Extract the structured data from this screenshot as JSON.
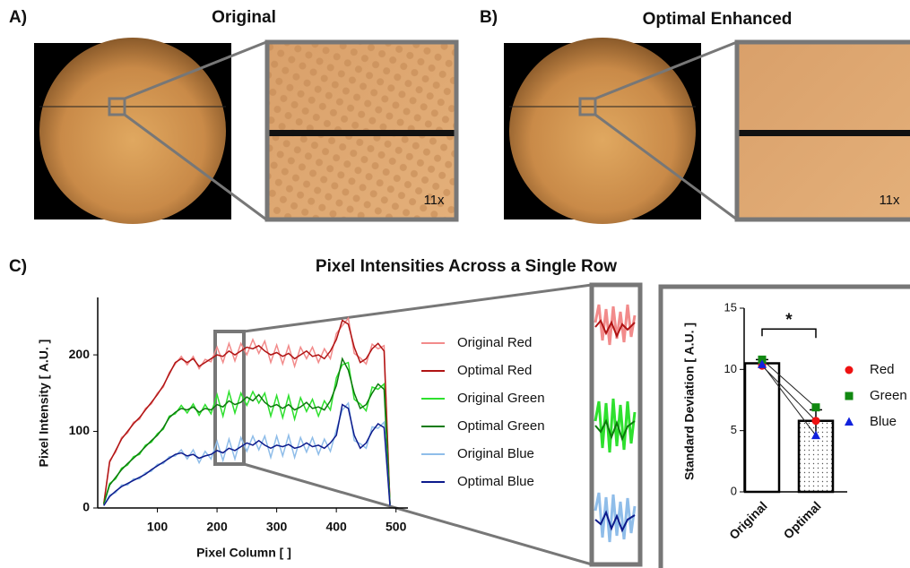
{
  "panels": {
    "a_label": "A)",
    "a_title": "Original",
    "a_zoom": "11x",
    "b_label": "B)",
    "b_title": "Optimal Enhanced",
    "b_zoom": "11x",
    "c_label": "C)"
  },
  "chart_data": [
    {
      "type": "line",
      "title": "Pixel Intensities Across a Single Row",
      "xlabel": "Pixel Column [ ]",
      "ylabel": "Pixel Intensity [ A.U. ]",
      "xlim": [
        0,
        520
      ],
      "ylim": [
        0,
        275
      ],
      "xticks": [
        100,
        200,
        300,
        400,
        500
      ],
      "yticks": [
        0,
        100,
        200
      ],
      "legend": "right",
      "x": [
        10,
        20,
        30,
        40,
        50,
        60,
        70,
        80,
        90,
        100,
        110,
        120,
        130,
        140,
        150,
        160,
        170,
        180,
        190,
        200,
        210,
        220,
        230,
        240,
        250,
        260,
        270,
        280,
        290,
        300,
        310,
        320,
        330,
        340,
        350,
        360,
        370,
        380,
        390,
        400,
        410,
        420,
        430,
        440,
        450,
        460,
        470,
        480,
        490
      ],
      "series": [
        {
          "name": "Original Red",
          "color": "#f28b8b",
          "values": [
            5,
            62,
            73,
            92,
            98,
            112,
            116,
            130,
            136,
            150,
            158,
            177,
            188,
            198,
            187,
            198,
            182,
            194,
            191,
            210,
            190,
            215,
            192,
            215,
            200,
            220,
            202,
            218,
            190,
            213,
            188,
            212,
            185,
            210,
            195,
            210,
            190,
            208,
            195,
            228,
            238,
            248,
            202,
            196,
            188,
            214,
            208,
            212,
            5
          ]
        },
        {
          "name": "Optimal Red",
          "color": "#b01414",
          "values": [
            5,
            60,
            75,
            90,
            100,
            110,
            118,
            128,
            138,
            148,
            160,
            175,
            190,
            195,
            190,
            195,
            185,
            190,
            195,
            200,
            198,
            205,
            200,
            205,
            210,
            208,
            212,
            205,
            200,
            203,
            198,
            202,
            195,
            200,
            205,
            198,
            200,
            195,
            205,
            220,
            245,
            240,
            210,
            190,
            195,
            208,
            215,
            205,
            5
          ]
        },
        {
          "name": "Original Green",
          "color": "#2ee02e",
          "values": [
            5,
            32,
            38,
            52,
            56,
            67,
            70,
            82,
            86,
            97,
            103,
            120,
            123,
            134,
            124,
            136,
            121,
            135,
            123,
            148,
            120,
            152,
            124,
            150,
            134,
            152,
            137,
            150,
            120,
            147,
            118,
            147,
            116,
            144,
            126,
            142,
            120,
            140,
            128,
            170,
            187,
            190,
            142,
            136,
            127,
            158,
            155,
            162,
            5
          ]
        },
        {
          "name": "Optimal Green",
          "color": "#0b7a0b",
          "values": [
            5,
            30,
            40,
            50,
            58,
            65,
            72,
            80,
            88,
            95,
            105,
            118,
            125,
            130,
            128,
            132,
            125,
            130,
            128,
            135,
            132,
            140,
            135,
            138,
            145,
            140,
            148,
            138,
            132,
            135,
            130,
            135,
            128,
            132,
            138,
            130,
            132,
            128,
            140,
            160,
            195,
            180,
            150,
            130,
            135,
            150,
            162,
            155,
            5
          ]
        },
        {
          "name": "Original Blue",
          "color": "#8fbde9",
          "values": [
            3,
            17,
            20,
            30,
            30,
            38,
            38,
            46,
            48,
            57,
            58,
            67,
            68,
            76,
            64,
            76,
            59,
            74,
            64,
            87,
            62,
            90,
            64,
            92,
            74,
            94,
            76,
            94,
            66,
            94,
            68,
            95,
            66,
            92,
            73,
            92,
            70,
            90,
            74,
            102,
            128,
            137,
            88,
            84,
            78,
            106,
            104,
            112,
            3
          ]
        },
        {
          "name": "Optimal Blue",
          "color": "#0c1a8c",
          "values": [
            3,
            15,
            22,
            28,
            32,
            36,
            40,
            44,
            50,
            55,
            60,
            65,
            70,
            72,
            68,
            70,
            65,
            68,
            70,
            75,
            72,
            78,
            75,
            80,
            85,
            82,
            88,
            82,
            78,
            82,
            80,
            83,
            78,
            80,
            85,
            80,
            82,
            78,
            85,
            95,
            135,
            130,
            95,
            78,
            85,
            100,
            110,
            105,
            3
          ]
        }
      ]
    },
    {
      "type": "bar",
      "ylabel": "Standard Deviation [ A.U. ]",
      "categories": [
        "Original",
        "Optimal"
      ],
      "values": [
        10.5,
        5.8
      ],
      "errors": [
        0.3,
        0.9
      ],
      "ylim": [
        0,
        15
      ],
      "yticks": [
        0,
        5,
        10,
        15
      ],
      "annotation": "*",
      "legend": "right",
      "series": [
        {
          "name": "Red",
          "color": "#ee1111",
          "marker": "circle",
          "values": [
            10.3,
            5.8
          ]
        },
        {
          "name": "Green",
          "color": "#118811",
          "marker": "square",
          "values": [
            10.8,
            6.9
          ]
        },
        {
          "name": "Blue",
          "color": "#1122dd",
          "marker": "triangle",
          "values": [
            10.4,
            4.6
          ]
        }
      ]
    }
  ]
}
